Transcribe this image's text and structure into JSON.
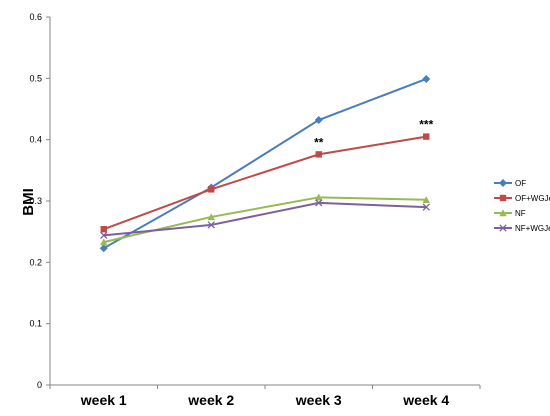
{
  "chart_data": {
    "type": "line",
    "title": "",
    "xlabel": "",
    "ylabel": "BMI",
    "categories": [
      "week 1",
      "week 2",
      "week 3",
      "week 4"
    ],
    "ylim": [
      0,
      0.6
    ],
    "yticks": [
      "0",
      "0.1",
      "0.2",
      "0.3",
      "0.4",
      "0.5",
      "0.6"
    ],
    "grid": false,
    "legend_position": "right",
    "series": [
      {
        "name": "OF",
        "color": "#4a7ebb",
        "marker": "diamond",
        "values": [
          0.223,
          0.322,
          0.432,
          0.499
        ]
      },
      {
        "name": "OF+WGJe",
        "color": "#be4b48",
        "marker": "square",
        "values": [
          0.254,
          0.319,
          0.376,
          0.405
        ]
      },
      {
        "name": "NF",
        "color": "#98b954",
        "marker": "triangle",
        "values": [
          0.233,
          0.274,
          0.306,
          0.302
        ]
      },
      {
        "name": "NF+WGJe",
        "color": "#7d60a0",
        "marker": "x",
        "values": [
          0.244,
          0.261,
          0.297,
          0.29
        ]
      }
    ],
    "annotations": [
      {
        "text": "**",
        "category": "week 3",
        "value": 0.376
      },
      {
        "text": "***",
        "category": "week 4",
        "value": 0.405
      }
    ]
  }
}
